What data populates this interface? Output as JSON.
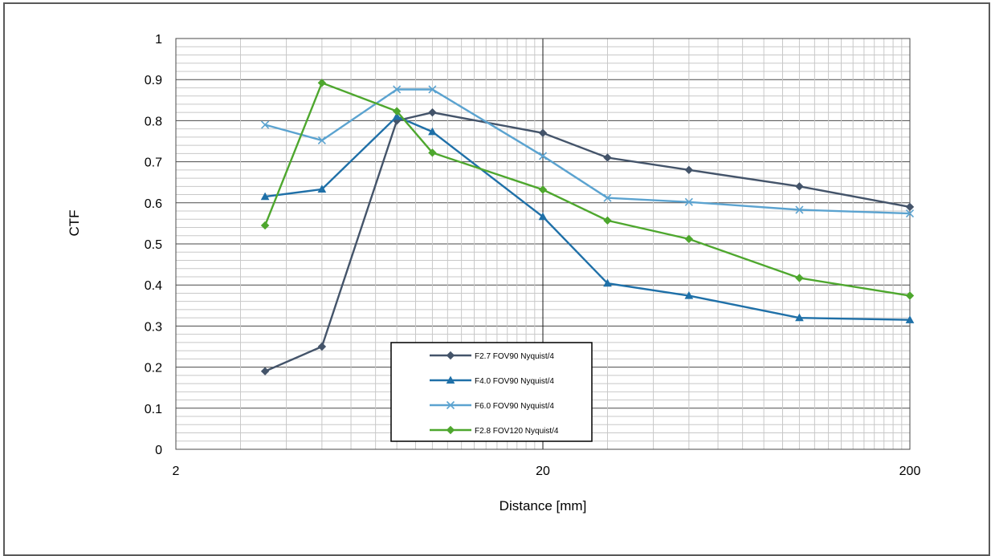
{
  "chart_data": {
    "type": "line",
    "x_scale": "log",
    "xlim": [
      2,
      200
    ],
    "ylim": [
      0,
      1
    ],
    "xlabel": "Distance [mm]",
    "ylabel": "CTF",
    "x_ticks": [
      "2",
      "20",
      "200"
    ],
    "y_ticks": [
      "0",
      "0.1",
      "0.2",
      "0.3",
      "0.4",
      "0.5",
      "0.6",
      "0.7",
      "0.8",
      "0.9",
      "1"
    ],
    "grid": true,
    "legend_position": "bottom-center",
    "x": [
      3.5,
      5,
      8,
      10,
      24,
      40,
      100,
      200
    ],
    "series": [
      {
        "name": "F2.7 FOV90 Nyquist/4",
        "color": "#44546a",
        "marker": "diamond",
        "values": [
          0.19,
          0.25,
          0.8,
          0.82,
          0.77,
          0.71,
          0.68,
          0.64,
          0.59
        ],
        "x": [
          3.5,
          5,
          8,
          10,
          20,
          30,
          50,
          100,
          200
        ]
      },
      {
        "name": "F4.0 FOV90 Nyquist/4",
        "color": "#1f70a8",
        "marker": "triangle",
        "values": [
          0.615,
          0.633,
          0.81,
          0.773,
          0.566,
          0.404,
          0.374,
          0.32,
          0.315
        ],
        "x": [
          3.5,
          5,
          8,
          10,
          20,
          30,
          50,
          100,
          200
        ]
      },
      {
        "name": "F6.0 FOV90 Nyquist/4",
        "color": "#5ba3d0",
        "marker": "x",
        "values": [
          0.79,
          0.752,
          0.876,
          0.876,
          0.714,
          0.612,
          0.602,
          0.583,
          0.574
        ],
        "x": [
          3.5,
          5,
          8,
          10,
          20,
          30,
          50,
          100,
          200
        ]
      },
      {
        "name": "F2.8 FOV120 Nyquist/4",
        "color": "#4ea72e",
        "marker": "diamond",
        "values": [
          0.545,
          0.892,
          0.823,
          0.722,
          0.632,
          0.557,
          0.512,
          0.417,
          0.374
        ],
        "x": [
          3.5,
          5,
          8,
          10,
          20,
          30,
          50,
          100,
          200
        ]
      }
    ]
  }
}
